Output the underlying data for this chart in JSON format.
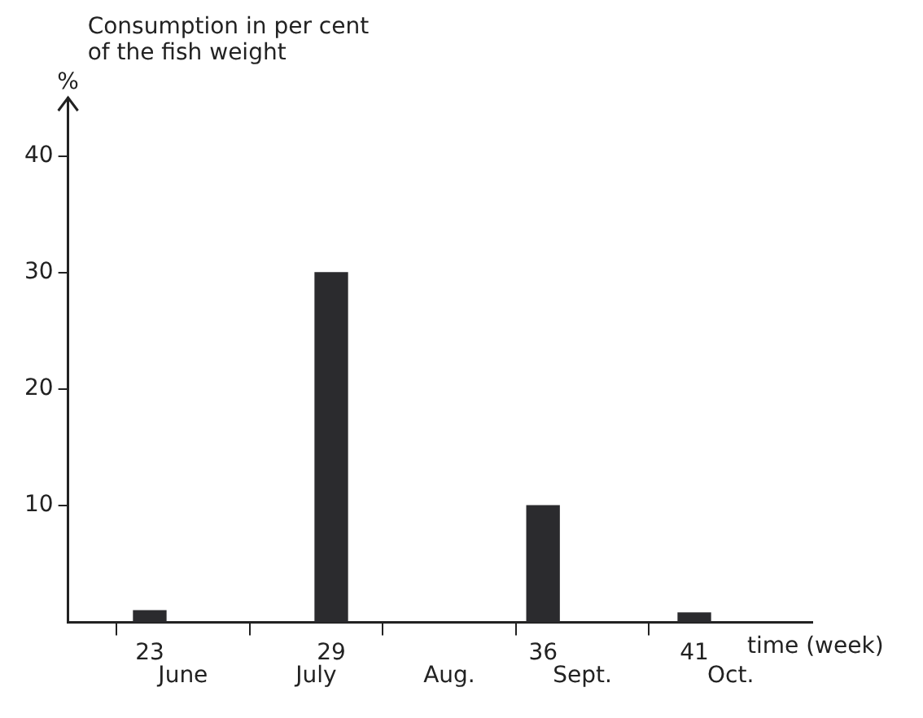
{
  "chart_data": {
    "type": "bar",
    "title": "Consumption in per cent of the fish weight",
    "ylabel": "%",
    "xlabel": "time (week)",
    "x": [
      23,
      29,
      36,
      41
    ],
    "values": [
      1,
      30,
      10,
      0.8
    ],
    "color": "#2b2b2e",
    "xlim": [
      20.3,
      44.9
    ],
    "xticks": [
      {
        "value": 21.9,
        "label": null
      },
      23,
      {
        "value": 26.3,
        "label": null
      },
      29,
      {
        "value": 30.7,
        "label": null
      },
      {
        "value": 35.1,
        "label": null
      },
      36,
      {
        "value": 39.5,
        "label": null
      },
      41
    ],
    "ylim": [
      0,
      45
    ],
    "yticks": [
      10,
      20,
      30,
      40
    ],
    "annotations": [
      "June",
      "July",
      "Aug.",
      "Sept.",
      "Oct."
    ],
    "grid": false,
    "legend": false
  }
}
